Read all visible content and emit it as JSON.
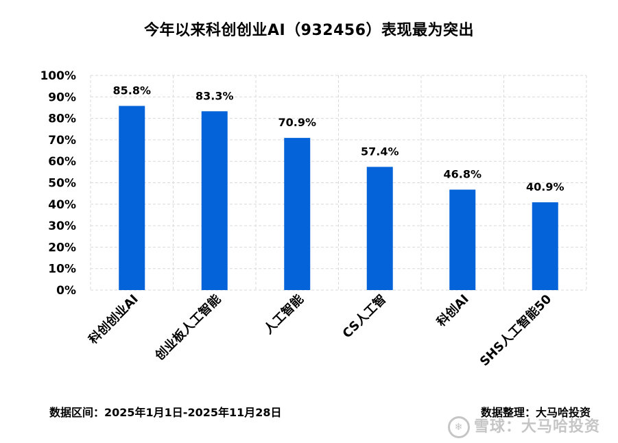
{
  "title": "今年以来科创创业AI（932456）表现最为突出",
  "footer": {
    "left": "数据区间：2025年1月1日-2025年11月28日",
    "right": "数据整理：大马哈投资"
  },
  "watermark": "雪球：大马哈投资",
  "colors": {
    "bar": "#0463D8",
    "grid": "#D9D9D9"
  },
  "chart_data": {
    "type": "bar",
    "title": "今年以来科创创业AI（932456）表现最为突出",
    "categories": [
      "科创创业AI",
      "创业板人工智能",
      "人工智能",
      "CS人工智",
      "科创AI",
      "SHS人工智能50"
    ],
    "values": [
      85.8,
      83.3,
      70.9,
      57.4,
      46.8,
      40.9
    ],
    "data_labels": [
      "85.8%",
      "83.3%",
      "70.9%",
      "57.4%",
      "46.8%",
      "40.9%"
    ],
    "ylim": [
      0,
      100
    ],
    "yticks": [
      "0%",
      "10%",
      "20%",
      "30%",
      "40%",
      "50%",
      "60%",
      "70%",
      "80%",
      "90%",
      "100%"
    ],
    "grid": "dashed, both axes",
    "legend": "none"
  }
}
